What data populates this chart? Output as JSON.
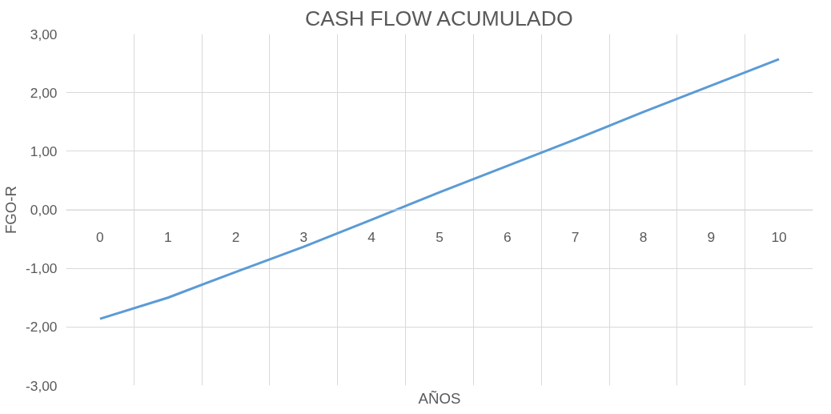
{
  "chart_data": {
    "type": "line",
    "title": "CASH FLOW ACUMULADO",
    "xlabel": "AÑOS",
    "ylabel": "FGO-R",
    "categories": [
      "0",
      "1",
      "2",
      "3",
      "4",
      "5",
      "6",
      "7",
      "8",
      "9",
      "10"
    ],
    "series": [
      {
        "color": "#5b9bd5",
        "values": [
          -1.86,
          -1.5,
          -1.06,
          -0.63,
          -0.17,
          0.3,
          0.75,
          1.2,
          1.67,
          2.12,
          2.57
        ]
      }
    ],
    "ylim": [
      -3,
      3
    ],
    "yticks": [
      {
        "value": -3,
        "label": "-3,00"
      },
      {
        "value": -2,
        "label": "-2,00"
      },
      {
        "value": -1,
        "label": "-1,00"
      },
      {
        "value": 0,
        "label": "0,00"
      },
      {
        "value": 1,
        "label": "1,00"
      },
      {
        "value": 2,
        "label": "2,00"
      },
      {
        "value": 3,
        "label": "3,00"
      }
    ],
    "grid": true,
    "marker": "none",
    "line_style": "solid"
  }
}
